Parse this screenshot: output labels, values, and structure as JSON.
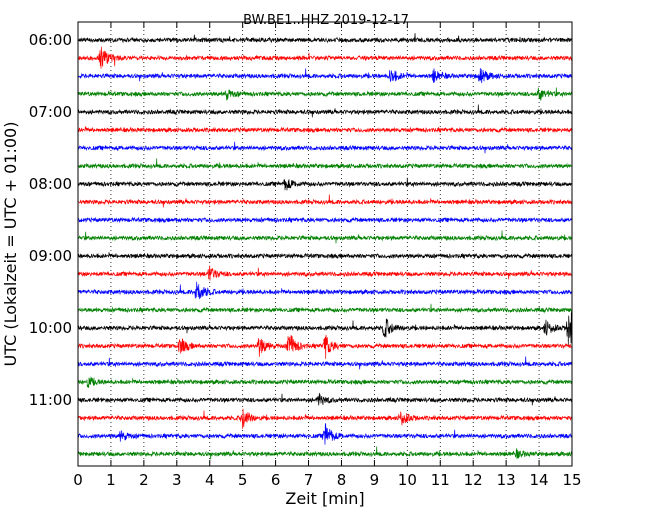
{
  "chart_data": {
    "type": "line",
    "title": "BW.BE1..HHZ 2019-12-17",
    "xlabel": "Zeit  [min]",
    "ylabel": "UTC (Lokalzeit = UTC + 01:00)",
    "xlim": [
      0,
      15
    ],
    "x_ticks": [
      "0",
      "1",
      "2",
      "3",
      "4",
      "5",
      "6",
      "7",
      "8",
      "9",
      "10",
      "11",
      "12",
      "13",
      "14",
      "15"
    ],
    "y_tick_labels": [
      "06:00",
      "07:00",
      "08:00",
      "09:00",
      "10:00",
      "11:00"
    ],
    "trace_start_times": [
      "06:00",
      "06:15",
      "06:30",
      "06:45",
      "07:00",
      "07:15",
      "07:30",
      "07:45",
      "08:00",
      "08:15",
      "08:30",
      "08:45",
      "09:00",
      "09:15",
      "09:30",
      "09:45",
      "10:00",
      "10:15",
      "10:30",
      "10:45",
      "11:00",
      "11:15",
      "11:30",
      "11:45"
    ],
    "trace_minutes_per_line": 15,
    "trace_colors": [
      "#000000",
      "#ff0000",
      "#0000ff",
      "#008000"
    ],
    "vertical_gridlines": true,
    "grid_style": "dotted",
    "events": [
      {
        "trace": 1,
        "minute": 0.7,
        "amplitude": 0.9
      },
      {
        "trace": 2,
        "minute": 9.5,
        "amplitude": 0.6
      },
      {
        "trace": 2,
        "minute": 10.8,
        "amplitude": 0.5
      },
      {
        "trace": 2,
        "minute": 12.2,
        "amplitude": 0.7
      },
      {
        "trace": 3,
        "minute": 4.5,
        "amplitude": 0.4
      },
      {
        "trace": 3,
        "minute": 14.0,
        "amplitude": 0.5
      },
      {
        "trace": 8,
        "minute": 6.3,
        "amplitude": 0.5
      },
      {
        "trace": 13,
        "minute": 4.0,
        "amplitude": 0.6
      },
      {
        "trace": 14,
        "minute": 3.6,
        "amplitude": 1.0
      },
      {
        "trace": 16,
        "minute": 9.3,
        "amplitude": 0.9
      },
      {
        "trace": 16,
        "minute": 14.2,
        "amplitude": 0.6
      },
      {
        "trace": 16,
        "minute": 14.9,
        "amplitude": 1.9
      },
      {
        "trace": 17,
        "minute": 3.1,
        "amplitude": 0.7
      },
      {
        "trace": 17,
        "minute": 5.5,
        "amplitude": 0.8
      },
      {
        "trace": 17,
        "minute": 6.4,
        "amplitude": 1.2
      },
      {
        "trace": 17,
        "minute": 7.5,
        "amplitude": 1.0
      },
      {
        "trace": 19,
        "minute": 0.3,
        "amplitude": 0.4
      },
      {
        "trace": 20,
        "minute": 7.3,
        "amplitude": 0.5
      },
      {
        "trace": 21,
        "minute": 5.0,
        "amplitude": 0.8
      },
      {
        "trace": 21,
        "minute": 9.8,
        "amplitude": 0.6
      },
      {
        "trace": 22,
        "minute": 1.3,
        "amplitude": 0.4
      },
      {
        "trace": 22,
        "minute": 7.5,
        "amplitude": 1.0
      },
      {
        "trace": 23,
        "minute": 13.3,
        "amplitude": 0.3
      }
    ]
  }
}
